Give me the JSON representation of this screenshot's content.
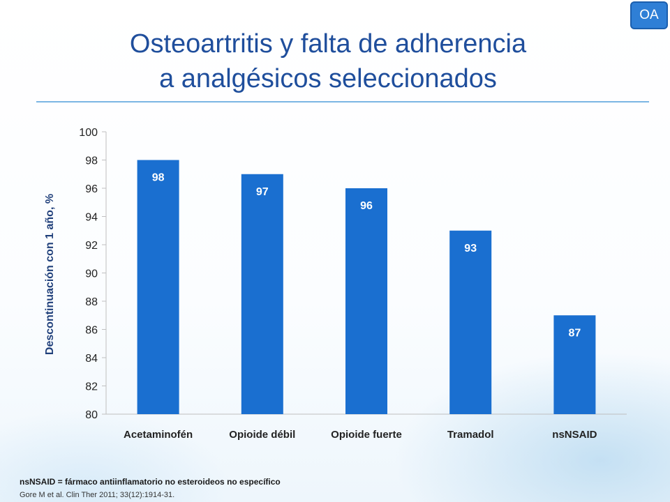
{
  "badge": {
    "label": "OA"
  },
  "slide": {
    "title_line1": "Osteoartritis y falta de adherencia",
    "title_line2": "a analgésicos seleccionados",
    "footnote": "nsNSAID = fármaco antiinflamatorio no esteroideos no específico",
    "reference": "Gore M et al. Clin Ther 2011; 33(12):1914-31."
  },
  "colors": {
    "bar": "#1a6fd0",
    "title": "#1f4e9c",
    "axis_text": "#222222"
  },
  "chart_data": {
    "type": "bar",
    "title": "",
    "xlabel": "",
    "ylabel": "Descontinuación con 1 año, %",
    "categories": [
      "Acetaminofén",
      "Opioide débil",
      "Opioide fuerte",
      "Tramadol",
      "nsNSAID"
    ],
    "values": [
      98,
      97,
      96,
      93,
      87
    ],
    "ylim": [
      80,
      100
    ],
    "yticks": [
      80,
      82,
      84,
      86,
      88,
      90,
      92,
      94,
      96,
      98,
      100
    ],
    "data_labels": [
      "98",
      "97",
      "96",
      "93",
      "87"
    ],
    "grid": false,
    "legend": "none"
  }
}
